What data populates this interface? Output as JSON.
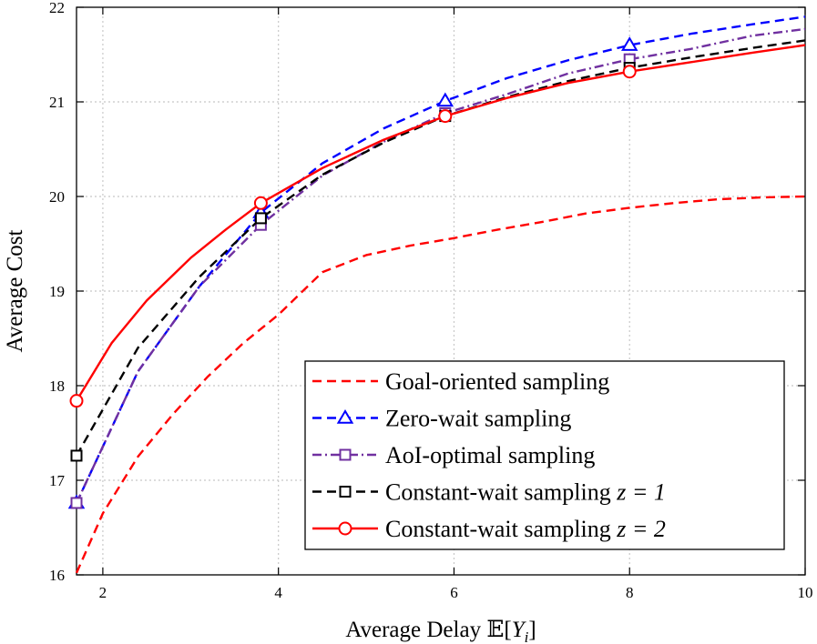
{
  "chart_data": {
    "type": "line",
    "title": "",
    "xlabel": "Average Delay 𝔼[Y_i]",
    "xlabel_prefix": "Average Delay ",
    "xlabel_bb": "𝔼",
    "xlabel_open": "[",
    "xlabel_var": "Y",
    "xlabel_sub": "i",
    "xlabel_close": "]",
    "ylabel": "Average Cost",
    "xlim": [
      1.7,
      10
    ],
    "ylim": [
      16,
      22
    ],
    "xticks": [
      2,
      4,
      6,
      8,
      10
    ],
    "yticks": [
      16,
      17,
      18,
      19,
      20,
      21,
      22
    ],
    "grid": true,
    "legend_position": "bottom-right",
    "series": [
      {
        "name": "Goal-oriented sampling",
        "legend_text": "Goal-oriented sampling",
        "legend_math": "",
        "color": "#ff0000",
        "dash": "dashed",
        "marker": "none",
        "x": [
          1.7,
          2.0,
          2.4,
          2.8,
          3.2,
          3.6,
          4.0,
          4.5,
          5.0,
          5.5,
          6.0,
          6.5,
          7.0,
          7.5,
          8.0,
          8.5,
          9.0,
          9.5,
          10.0
        ],
        "y": [
          16.02,
          16.65,
          17.25,
          17.7,
          18.1,
          18.45,
          18.75,
          19.2,
          19.38,
          19.48,
          19.56,
          19.65,
          19.73,
          19.82,
          19.88,
          19.93,
          19.97,
          19.99,
          20.0
        ],
        "marker_x": [],
        "marker_y": []
      },
      {
        "name": "Zero-wait sampling",
        "legend_text": "Zero-wait sampling",
        "legend_math": "",
        "color": "#0000ff",
        "dash": "dashed",
        "marker": "triangle",
        "x": [
          1.7,
          2.4,
          3.1,
          3.8,
          4.5,
          5.2,
          5.9,
          6.6,
          7.3,
          8.0,
          8.7,
          9.4,
          10.0
        ],
        "y": [
          16.76,
          18.15,
          19.05,
          19.83,
          20.35,
          20.72,
          21.01,
          21.25,
          21.44,
          21.6,
          21.72,
          21.82,
          21.9
        ],
        "marker_x": [
          1.7,
          3.8,
          5.9,
          8.0
        ],
        "marker_y": [
          16.76,
          19.83,
          21.01,
          21.6
        ]
      },
      {
        "name": "AoI-optimal sampling",
        "legend_text": "AoI-optimal sampling",
        "legend_math": "",
        "color": "#7030a0",
        "dash": "dashdot",
        "marker": "square",
        "x": [
          1.7,
          2.4,
          3.1,
          3.8,
          4.5,
          5.2,
          5.9,
          6.6,
          7.3,
          8.0,
          8.7,
          9.4,
          10.0
        ],
        "y": [
          16.76,
          18.15,
          19.05,
          19.7,
          20.22,
          20.58,
          20.88,
          21.08,
          21.3,
          21.45,
          21.56,
          21.7,
          21.77
        ],
        "marker_x": [
          1.7,
          3.8,
          5.9,
          8.0
        ],
        "marker_y": [
          16.76,
          19.7,
          20.88,
          21.45
        ]
      },
      {
        "name": "Constant-wait sampling z = 1",
        "legend_text": "Constant-wait sampling ",
        "legend_math": "z = 1",
        "color": "#000000",
        "dash": "dashed",
        "marker": "square",
        "x": [
          1.7,
          2.4,
          3.1,
          3.8,
          4.5,
          5.2,
          5.9,
          6.6,
          7.3,
          8.0,
          8.7,
          9.4,
          10.0
        ],
        "y": [
          17.26,
          18.4,
          19.15,
          19.77,
          20.23,
          20.57,
          20.85,
          21.05,
          21.22,
          21.36,
          21.47,
          21.57,
          21.65
        ],
        "marker_x": [
          1.7,
          3.8,
          5.9,
          8.0
        ],
        "marker_y": [
          17.26,
          19.77,
          20.85,
          21.36
        ]
      },
      {
        "name": "Constant-wait sampling z = 2",
        "legend_text": "Constant-wait sampling ",
        "legend_math": "z = 2",
        "color": "#ff0000",
        "dash": "solid",
        "marker": "circle",
        "x": [
          1.7,
          2.1,
          2.5,
          3.0,
          3.4,
          3.8,
          4.5,
          5.2,
          5.9,
          6.6,
          7.3,
          8.0,
          8.7,
          9.4,
          10.0
        ],
        "y": [
          17.84,
          18.45,
          18.9,
          19.35,
          19.65,
          19.93,
          20.3,
          20.6,
          20.85,
          21.04,
          21.2,
          21.32,
          21.42,
          21.52,
          21.6
        ],
        "marker_x": [
          1.7,
          3.8,
          5.9,
          8.0
        ],
        "marker_y": [
          17.84,
          19.93,
          20.85,
          21.32
        ]
      }
    ]
  }
}
